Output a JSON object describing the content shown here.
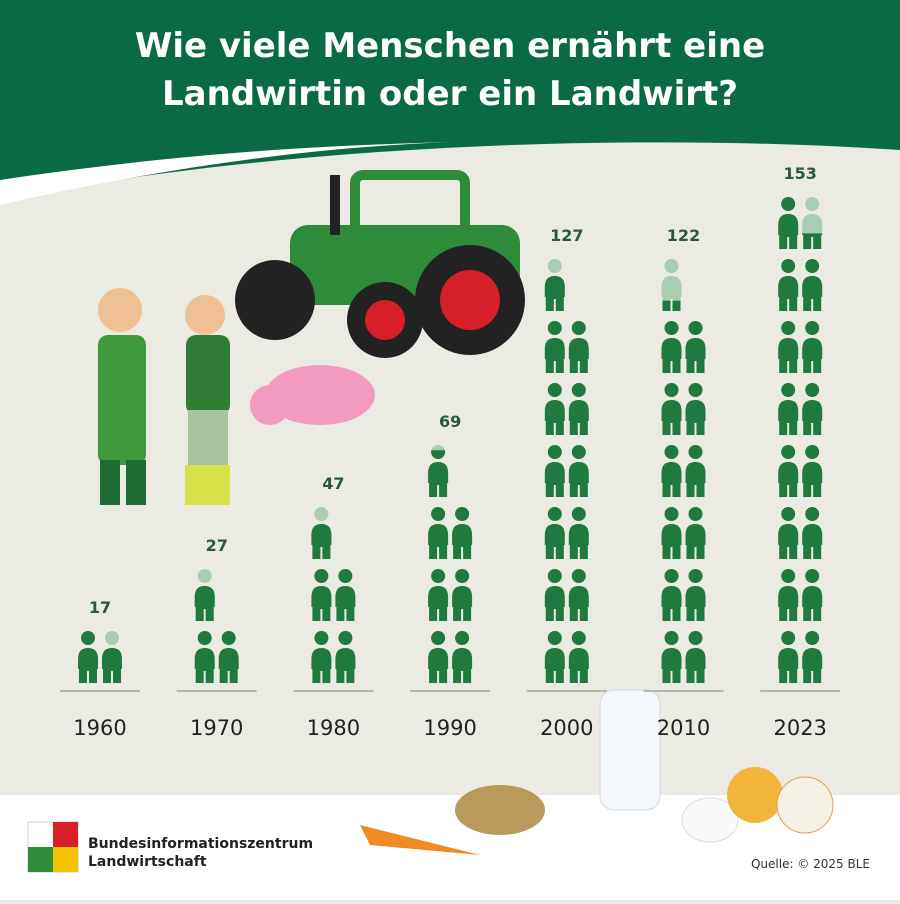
{
  "chart_data": {
    "type": "pictograph",
    "title": "Wie viele Menschen ernährt eine Landwirtin oder ein Landwirt?",
    "categories": [
      "1960",
      "1970",
      "1980",
      "1990",
      "2000",
      "2010",
      "2023"
    ],
    "values": [
      17,
      27,
      47,
      69,
      127,
      122,
      153
    ],
    "color": "#1e7a3e",
    "light_color": "#a8cdb3",
    "logo_text": [
      "Bundesinformationszentrum",
      "Landwirtschaft"
    ],
    "source": "Quelle: © 2025 BLE"
  }
}
